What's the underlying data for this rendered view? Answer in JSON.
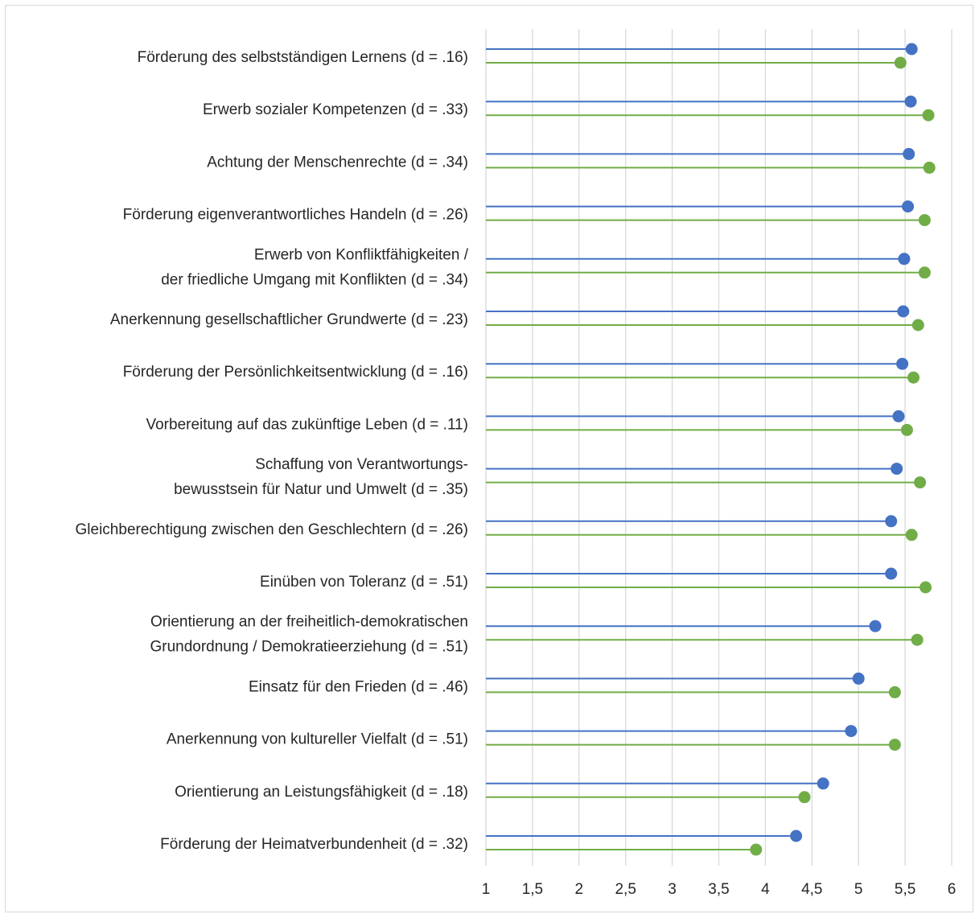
{
  "chart_data": {
    "type": "lollipop",
    "orientation": "horizontal",
    "title": "",
    "xlabel": "",
    "ylabel": "",
    "xlim": [
      1,
      6
    ],
    "x_ticks": [
      "1",
      "1,5",
      "2",
      "2,5",
      "3",
      "3,5",
      "4",
      "4,5",
      "5",
      "5,5",
      "6"
    ],
    "x_tick_values": [
      1,
      1.5,
      2,
      2.5,
      3,
      3.5,
      4,
      4.5,
      5,
      5.5,
      6
    ],
    "grid": "vertical",
    "legend": "none",
    "categories": [
      [
        "Förderung des selbstständigen Lernens (d = .16)"
      ],
      [
        "Erwerb sozialer Kompetenzen (d = .33)"
      ],
      [
        "Achtung der Menschenrechte (d = .34)"
      ],
      [
        "Förderung eigenverantwortliches Handeln (d = .26)"
      ],
      [
        "Erwerb von Konfliktfähigkeiten /",
        "der friedliche Umgang mit Konflikten (d = .34)"
      ],
      [
        "Anerkennung gesellschaftlicher Grundwerte (d = .23)"
      ],
      [
        "Förderung der Persönlichkeitsentwicklung (d = .16)"
      ],
      [
        "Vorbereitung auf das zukünftige Leben (d = .11)"
      ],
      [
        "Schaffung von Verantwortungs-",
        "bewusstsein für Natur und Umwelt (d = .35)"
      ],
      [
        "Gleichberechtigung zwischen den Geschlechtern (d = .26)"
      ],
      [
        "Einüben von Toleranz (d = .51)"
      ],
      [
        "Orientierung an der freiheitlich-demokratischen",
        "Grundordnung / Demokratieerziehung (d = .51)"
      ],
      [
        "Einsatz für den Frieden (d = .46)"
      ],
      [
        "Anerkennung von kultureller Vielfalt (d = .51)"
      ],
      [
        "Orientierung an Leistungsfähigkeit (d = .18)"
      ],
      [
        "Förderung der Heimatverbundenheit (d = .32)"
      ]
    ],
    "series": [
      {
        "color": "#4472c4",
        "values": [
          5.57,
          5.56,
          5.54,
          5.53,
          5.49,
          5.48,
          5.47,
          5.43,
          5.41,
          5.35,
          5.35,
          5.18,
          5.0,
          4.92,
          4.62,
          4.33
        ]
      },
      {
        "color": "#70ad47",
        "values": [
          5.45,
          5.75,
          5.76,
          5.71,
          5.71,
          5.64,
          5.59,
          5.52,
          5.66,
          5.57,
          5.72,
          5.63,
          5.39,
          5.39,
          4.42,
          3.9
        ]
      }
    ],
    "gridline_color": "#d9d9d9"
  }
}
